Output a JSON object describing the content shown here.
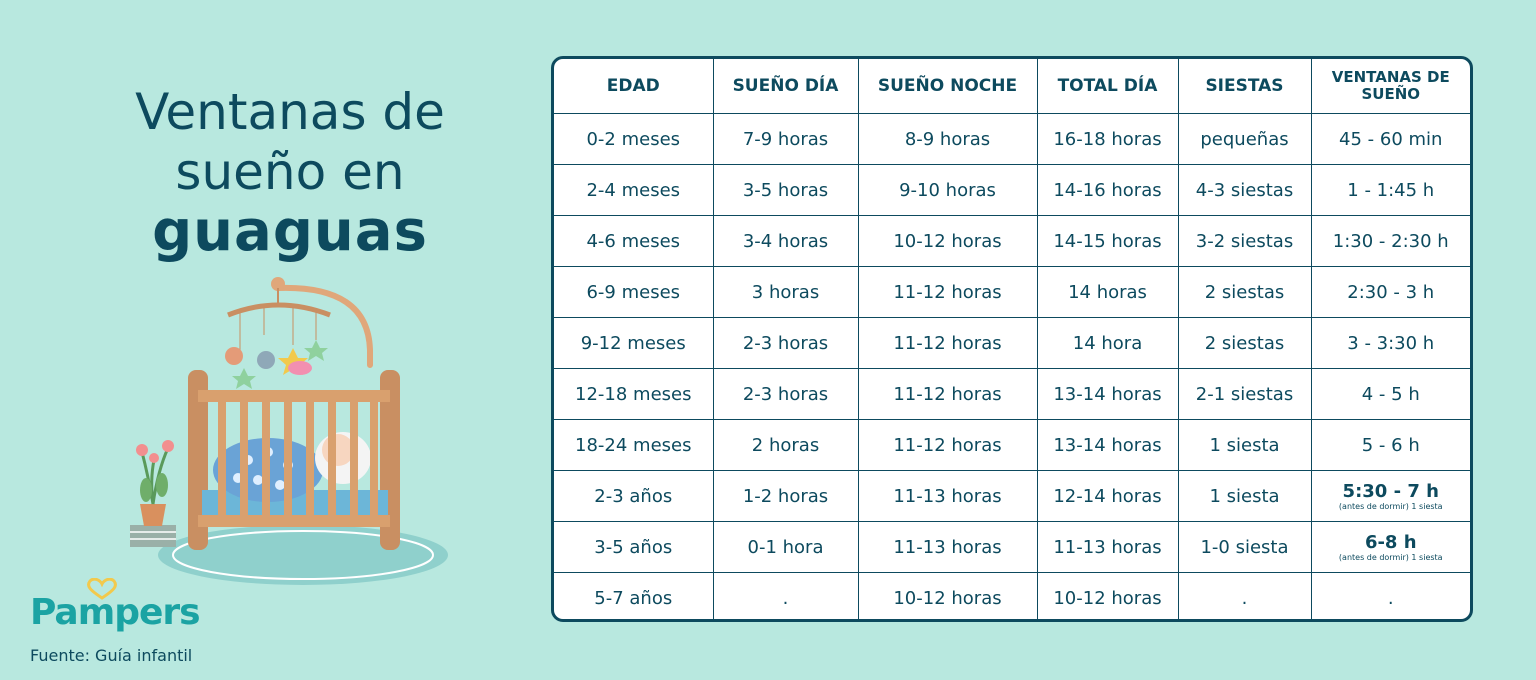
{
  "title": {
    "line1": "Ventanas de",
    "line2": "sueño en",
    "line3": "guaguas"
  },
  "brand": "Pampers",
  "source": "Fuente: Guía infantil",
  "colors": {
    "background": "#b8e8df",
    "text": "#0d4a5e",
    "table_bg": "#ffffff",
    "brand": "#1ba3a3"
  },
  "table": {
    "headers": [
      "EDAD",
      "SUEÑO DÍA",
      "SUEÑO NOCHE",
      "TOTAL DÍA",
      "SIESTAS",
      "VENTANAS DE SUEÑO"
    ],
    "rows": [
      [
        "0-2 meses",
        "7-9 horas",
        "8-9 horas",
        "16-18 horas",
        "pequeñas",
        "45 - 60 min"
      ],
      [
        "2-4 meses",
        "3-5 horas",
        "9-10 horas",
        "14-16 horas",
        "4-3 siestas",
        "1 - 1:45 h"
      ],
      [
        "4-6 meses",
        "3-4 horas",
        "10-12 horas",
        "14-15 horas",
        "3-2 siestas",
        "1:30 - 2:30 h"
      ],
      [
        "6-9 meses",
        "3 horas",
        "11-12 horas",
        "14 horas",
        "2 siestas",
        "2:30 - 3 h"
      ],
      [
        "9-12 meses",
        "2-3 horas",
        "11-12 horas",
        "14 hora",
        "2 siestas",
        "3 - 3:30 h"
      ],
      [
        "12-18 meses",
        "2-3 horas",
        "11-12 horas",
        "13-14 horas",
        "2-1 siestas",
        "4 - 5 h"
      ],
      [
        "18-24 meses",
        "2 horas",
        "11-12 horas",
        "13-14 horas",
        "1 siesta",
        "5 - 6 h"
      ],
      [
        "2-3 años",
        "1-2 horas",
        "11-13 horas",
        "12-14 horas",
        "1 siesta",
        "5:30 - 7 h"
      ],
      [
        "3-5 años",
        "0-1 hora",
        "11-13 horas",
        "11-13 horas",
        "1-0 siesta",
        "6-8 h"
      ],
      [
        "5-7 años",
        ".",
        "10-12 horas",
        "10-12 horas",
        ".",
        "."
      ]
    ],
    "notes": {
      "7": "(antes de dormir) 1 siesta",
      "8": "(antes de dormir) 1 siesta"
    }
  }
}
